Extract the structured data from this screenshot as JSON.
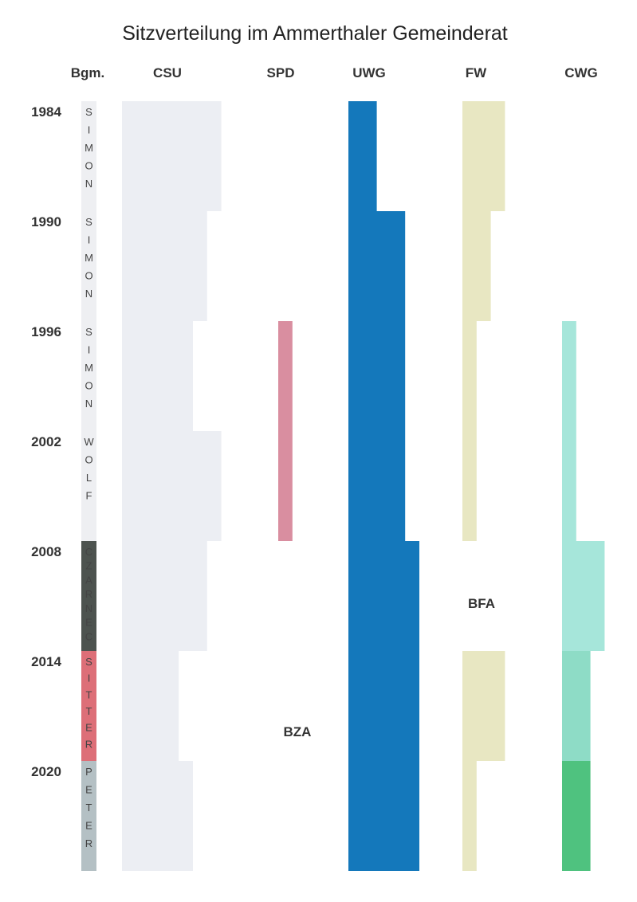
{
  "chart_data": {
    "type": "area",
    "title": "Sitzverteilung im Ammerthaler Gemeinderat",
    "mayor_header": "Bgm.",
    "terms": [
      "1984",
      "1990",
      "1996",
      "2002",
      "2008",
      "2014",
      "2020"
    ],
    "mayors": [
      {
        "name": "SIMON",
        "color": "#eeeff2",
        "letter_color": "#444444"
      },
      {
        "name": "SIMON",
        "color": "#eeeff2",
        "letter_color": "#444444"
      },
      {
        "name": "SIMON",
        "color": "#eeeff2",
        "letter_color": "#444444"
      },
      {
        "name": "WOLF",
        "color": "#eeeff2",
        "letter_color": "#444444"
      },
      {
        "name": "CZARNEC",
        "color": "#4d534f",
        "letter_color": "#3d4340"
      },
      {
        "name": "SITTER",
        "color": "#dd6f78",
        "letter_color": "#4a4a4a"
      },
      {
        "name": "PETER",
        "color": "#b4c0c4",
        "letter_color": "#4a4a4a"
      }
    ],
    "series": [
      {
        "name": "CSU",
        "color": "#eceef3",
        "values": [
          7,
          6,
          5,
          7,
          6,
          4,
          5
        ]
      },
      {
        "name": "SPD",
        "color": "#d98ea0",
        "values": [
          0,
          0,
          1,
          1,
          0,
          0,
          0
        ]
      },
      {
        "name": "UWG",
        "color": "#1478bb",
        "values": [
          2,
          4,
          4,
          4,
          5,
          5,
          5
        ]
      },
      {
        "name": "FW",
        "color": "#e8e7c2",
        "values": [
          3,
          2,
          1,
          1,
          0,
          3,
          1
        ]
      },
      {
        "name": "CWG",
        "color": "#a6e6da",
        "values": [
          0,
          0,
          1,
          1,
          3,
          2,
          2
        ]
      }
    ],
    "segment_colors": {
      "CWG": [
        "",
        "",
        "#a6e6da",
        "#a6e6da",
        "#a6e6da",
        "#8edcc6",
        "#4fc27f"
      ],
      "SPD": [
        "",
        "",
        "#d98ea0",
        "#d98ea0",
        "",
        "",
        "#d9c476"
      ]
    },
    "annotations": [
      {
        "text": "BFA",
        "column": "FW",
        "term": "2008"
      },
      {
        "text": "BZA",
        "column": "SPD",
        "term": "2014"
      }
    ]
  }
}
